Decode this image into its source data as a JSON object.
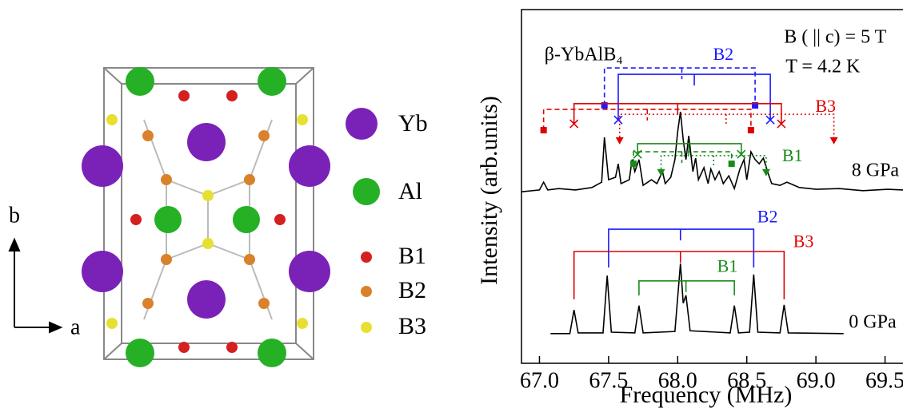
{
  "structure": {
    "legend": [
      "Yb",
      "Al",
      "B1",
      "B2",
      "B3"
    ],
    "axis_a": "a",
    "axis_b": "b"
  },
  "chart_data": {
    "type": "line",
    "xlabel": "Frequency (MHz)",
    "ylabel": "Intensity (arb.units)",
    "xlim": [
      66.87,
      69.63
    ],
    "ylim": [
      0,
      100
    ],
    "xticks": [
      {
        "value": 67,
        "label": "67.0"
      },
      67.5,
      {
        "value": 68,
        "label": "68.0"
      },
      68.5,
      {
        "value": 69,
        "label": "69.0"
      },
      69.5
    ],
    "grid": false,
    "series": [
      {
        "name": "8 GPa",
        "color": "#000000",
        "x": [
          66.87,
          67.0,
          67.03,
          67.06,
          67.14,
          67.26,
          67.38,
          67.45,
          67.47,
          67.5,
          67.55,
          67.57,
          67.59,
          67.65,
          67.67,
          67.69,
          67.72,
          67.75,
          67.81,
          67.85,
          67.89,
          67.91,
          67.95,
          67.98,
          68.0,
          68.02,
          68.04,
          68.06,
          68.08,
          68.11,
          68.13,
          68.15,
          68.19,
          68.22,
          68.24,
          68.27,
          68.3,
          68.33,
          68.37,
          68.41,
          68.45,
          68.48,
          68.5,
          68.53,
          68.56,
          68.59,
          68.62,
          68.65,
          68.68,
          68.74,
          68.79,
          68.88,
          69.0,
          69.17,
          69.34,
          69.52,
          69.63
        ],
        "values": [
          48.5,
          49.0,
          51.2,
          49.0,
          49.4,
          49.0,
          49.7,
          51.2,
          63.9,
          51.9,
          52.6,
          56.4,
          50.8,
          51.9,
          57.6,
          54.2,
          57.6,
          50.3,
          51.9,
          50.8,
          54.2,
          50.8,
          52.6,
          57.6,
          65.5,
          71.1,
          63.2,
          57.6,
          64.3,
          54.2,
          58.0,
          51.9,
          55.3,
          50.8,
          54.9,
          51.9,
          54.2,
          50.8,
          53.0,
          49.4,
          54.9,
          57.6,
          51.9,
          59.8,
          57.6,
          56.4,
          58.0,
          54.2,
          50.8,
          50.3,
          51.2,
          49.7,
          49.2,
          49.4,
          48.8,
          49.2,
          49.0
        ]
      },
      {
        "name": "0 GPa",
        "color": "#000000",
        "x": [
          67.08,
          67.22,
          67.25,
          67.28,
          67.46,
          67.49,
          67.52,
          67.69,
          67.72,
          67.75,
          67.98,
          68.02,
          68.04,
          68.06,
          68.09,
          68.38,
          68.41,
          68.44,
          68.52,
          68.55,
          68.58,
          68.74,
          68.77,
          68.8,
          69.2
        ],
        "values": [
          8.4,
          8.4,
          15.1,
          8.6,
          8.6,
          24.8,
          8.8,
          8.6,
          16.3,
          8.6,
          9.0,
          28.2,
          17.0,
          19.2,
          9.2,
          8.6,
          16.3,
          8.6,
          8.8,
          25.1,
          8.8,
          8.6,
          16.5,
          8.6,
          8.4
        ]
      }
    ],
    "brackets": [
      {
        "color": "#1a1aff",
        "style": "dashed",
        "x": [
          67.47,
          68.56
        ],
        "center": 68.03,
        "level": 83.5,
        "end": 72.9,
        "marker": "square"
      },
      {
        "color": "#1a1aff",
        "style": "solid",
        "x": [
          67.57,
          68.67
        ],
        "center": 68.12,
        "level": 81.7,
        "end": 68.8,
        "marker": "cross"
      },
      {
        "color": "#e00000",
        "style": "dashed",
        "x": [
          67.03,
          68.53
        ],
        "center": 67.78,
        "level": 71.8,
        "end": 65.9,
        "marker": "square"
      },
      {
        "color": "#e00000",
        "style": "solid",
        "x": [
          67.25,
          68.75
        ],
        "center": 68.0,
        "level": 73.4,
        "end": 67.7,
        "marker": "cross"
      },
      {
        "color": "#e00000",
        "style": "dotted",
        "x": [
          67.58,
          69.13
        ],
        "center": 68.35,
        "level": 70.4,
        "end": 63.9,
        "marker": "triangle"
      },
      {
        "color": "#1a8a1a",
        "style": "solid",
        "x": [
          67.71,
          68.46
        ],
        "center": 68.08,
        "level": 62.1,
        "end": 59.1,
        "marker": "cross"
      },
      {
        "color": "#1a8a1a",
        "style": "dashed",
        "x": [
          67.68,
          68.39
        ],
        "center": 68.03,
        "level": 59.8,
        "end": 56.4,
        "marker": "square"
      },
      {
        "color": "#1a8a1a",
        "style": "dotted",
        "x": [
          67.88,
          68.64
        ],
        "center": 68.26,
        "level": 58.7,
        "end": 54.9,
        "marker": "triangle"
      },
      {
        "color": "#1a1aff",
        "style": "solid",
        "x": [
          67.5,
          68.55
        ],
        "center": 68.02,
        "level": 37.9,
        "end": 27.1,
        "marker": "none"
      },
      {
        "color": "#e00000",
        "style": "solid",
        "x": [
          67.25,
          68.77
        ],
        "center": 68.02,
        "level": 31.6,
        "end": 18.1,
        "marker": "none"
      },
      {
        "color": "#1a8a1a",
        "style": "solid",
        "x": [
          67.72,
          68.41
        ],
        "center": 68.06,
        "level": 23.3,
        "end": 19.2,
        "marker": "none"
      }
    ],
    "labels": [
      {
        "text": "B2",
        "color": "#1a1aff",
        "x": 68.33,
        "y": 86.9
      },
      {
        "text": "B3",
        "color": "#e00000",
        "x": 69.07,
        "y": 72.2
      },
      {
        "text": "B1",
        "color": "#1a8a1a",
        "x": 68.83,
        "y": 58.2
      },
      {
        "text": "B2",
        "color": "#1a1aff",
        "x": 68.65,
        "y": 41.0
      },
      {
        "text": "B3",
        "color": "#e00000",
        "x": 68.91,
        "y": 34.0
      },
      {
        "text": "B1",
        "color": "#1a8a1a",
        "x": 68.36,
        "y": 27.0
      }
    ],
    "annotations": [
      {
        "text": "β-YbAlB₄",
        "x": 67.32,
        "y": 86.9
      },
      {
        "text": "B ( || c) = 5 T",
        "x": 69.14,
        "y": 91.9
      },
      {
        "text": "T = 4.2 K",
        "x": 69.05,
        "y": 83.5
      },
      {
        "text": "8 GPa",
        "x": 69.43,
        "y": 54.2
      },
      {
        "text": "0 GPa",
        "x": 69.41,
        "y": 11.3
      }
    ]
  }
}
